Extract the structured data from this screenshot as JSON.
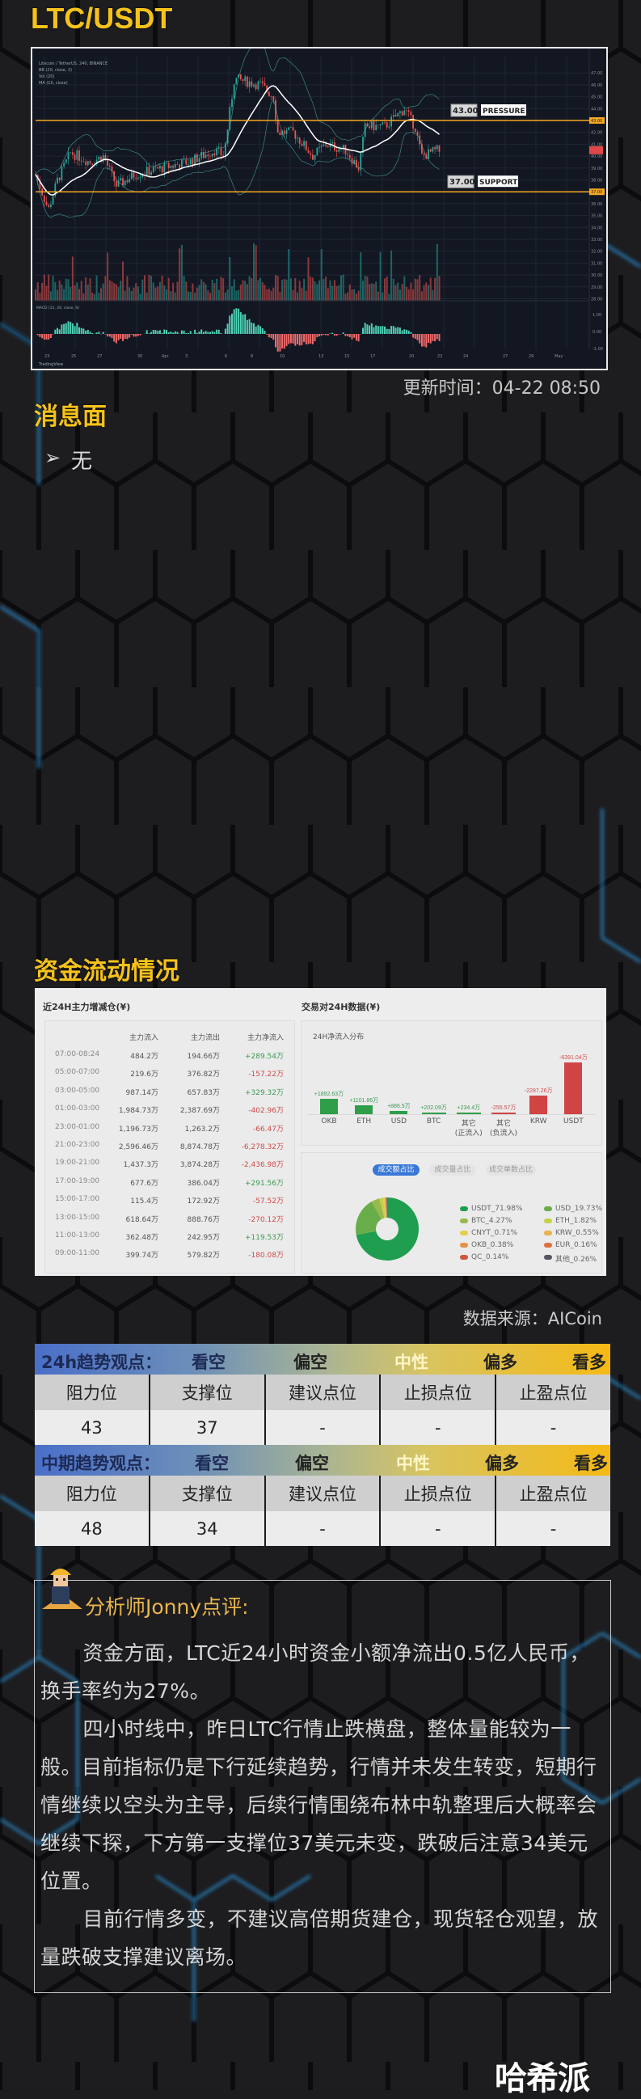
{
  "header": {
    "title": "LTC/USDT"
  },
  "chart_image": {
    "symbol_line": "Litecoin / TetherUS, 240, BINANCE",
    "indicators": [
      "BB (20, close, 2)",
      "Vol (20)",
      "MA (10, close)"
    ],
    "macd_label": "MACD (12, 26, close, 9)",
    "brand": "TradingView",
    "price_ticks": [
      "47.00",
      "46.00",
      "45.00",
      "44.00",
      "43.00",
      "42.00",
      "41.00",
      "40.00",
      "39.00",
      "38.00",
      "37.00",
      "36.00",
      "35.00",
      "34.00",
      "33.00",
      "32.00",
      "31.00",
      "30.00",
      "29.00",
      "28.00"
    ],
    "macd_ticks": [
      "1.00",
      "0.00",
      "-1.00"
    ],
    "date_ticks": [
      "23",
      "25",
      "27",
      "30",
      "Apr",
      "3",
      "6",
      "8",
      "10",
      "13",
      "15",
      "17",
      "20",
      "22",
      "24",
      "27",
      "29",
      "May"
    ],
    "pressure": {
      "value": "43.00",
      "label": "PRESSURE"
    },
    "support": {
      "value": "37.00",
      "label": "SUPPORT"
    },
    "colors": {
      "up": "#26a69a",
      "down": "#ef5350",
      "level": "#f5a623"
    }
  },
  "update_time": "更新时间：04-22 08:50",
  "news": {
    "title": "消息面",
    "items": [
      "无"
    ]
  },
  "flow": {
    "title": "资金流动情况",
    "left": {
      "title": "近24H主力增减仓(¥)",
      "columns": [
        "主力流入",
        "主力流出",
        "主力净流入"
      ],
      "rows": [
        [
          "07:00-08:24",
          "484.2万",
          "194.66万",
          "+289.54万"
        ],
        [
          "05:00-07:00",
          "219.6万",
          "376.82万",
          "-157.22万"
        ],
        [
          "03:00-05:00",
          "987.14万",
          "657.83万",
          "+329.32万"
        ],
        [
          "01:00-03:00",
          "1,984.73万",
          "2,387.69万",
          "-402.96万"
        ],
        [
          "23:00-01:00",
          "1,196.73万",
          "1,263.2万",
          "-66.47万"
        ],
        [
          "21:00-23:00",
          "2,596.46万",
          "8,874.78万",
          "-6,278.32万"
        ],
        [
          "19:00-21:00",
          "1,437.3万",
          "3,874.28万",
          "-2,436.98万"
        ],
        [
          "17:00-19:00",
          "677.6万",
          "386.04万",
          "+291.56万"
        ],
        [
          "15:00-17:00",
          "115.4万",
          "172.92万",
          "-57.52万"
        ],
        [
          "13:00-15:00",
          "618.64万",
          "888.76万",
          "-270.12万"
        ],
        [
          "11:00-13:00",
          "362.48万",
          "242.95万",
          "+119.53万"
        ],
        [
          "09:00-11:00",
          "399.74万",
          "579.82万",
          "-180.08万"
        ]
      ]
    },
    "right": {
      "title": "交易对24H数据(¥)",
      "bar_title": "24H净流入分布",
      "bars": [
        {
          "cat": "OKB",
          "cat2": "",
          "label": "+1892.63万",
          "value": 1892.63
        },
        {
          "cat": "ETH",
          "cat2": "",
          "label": "+1101.86万",
          "value": 1101.86
        },
        {
          "cat": "USD",
          "cat2": "",
          "label": "+886.5万",
          "value": 886.5
        },
        {
          "cat": "BTC",
          "cat2": "",
          "label": "+202.09万",
          "value": 202.09
        },
        {
          "cat": "其它",
          "cat2": "(正流入)",
          "label": "+234.4万",
          "value": 234.4
        },
        {
          "cat": "其它",
          "cat2": "(负流入)",
          "label": "-255.57万",
          "value": -255.57
        },
        {
          "cat": "KRW",
          "cat2": "",
          "label": "-2287.26万",
          "value": -2287.26
        },
        {
          "cat": "USDT",
          "cat2": "",
          "label": "-6391.04万",
          "value": -6391.04
        }
      ],
      "tabs": [
        {
          "label": "成交额占比",
          "active": true
        },
        {
          "label": "成交量占比",
          "active": false
        },
        {
          "label": "成交单数占比",
          "active": false
        }
      ],
      "pie": [
        {
          "name": "USDT_71.98%",
          "value": 71.98,
          "color": "#1f9e4f"
        },
        {
          "name": "USD_19.73%",
          "value": 19.73,
          "color": "#69ad4a"
        },
        {
          "name": "BTC_4.27%",
          "value": 4.27,
          "color": "#98b94c"
        },
        {
          "name": "ETH_1.82%",
          "value": 1.82,
          "color": "#c6d04a"
        },
        {
          "name": "CNYT_0.71%",
          "value": 0.71,
          "color": "#e2d04c"
        },
        {
          "name": "KRW_0.55%",
          "value": 0.55,
          "color": "#e8b24c"
        },
        {
          "name": "OKB_0.38%",
          "value": 0.38,
          "color": "#e0934a"
        },
        {
          "name": "EUR_0.16%",
          "value": 0.16,
          "color": "#e07040"
        },
        {
          "name": "QC_0.14%",
          "value": 0.14,
          "color": "#d0563f"
        },
        {
          "name": "其他_0.26%",
          "value": 0.26,
          "color": "#545566"
        }
      ]
    }
  },
  "source": "数据来源：AICoin",
  "trend_tables": [
    {
      "title": "24h趋势观点：",
      "scale": [
        "看空",
        "偏空",
        "中性",
        "偏多",
        "看多"
      ],
      "columns": [
        "阻力位",
        "支撑位",
        "建议点位",
        "止损点位",
        "止盈点位"
      ],
      "values": [
        "43",
        "37",
        "-",
        "-",
        "-"
      ]
    },
    {
      "title": "中期趋势观点：",
      "scale": [
        "看空",
        "偏空",
        "中性",
        "偏多",
        "看多"
      ],
      "columns": [
        "阻力位",
        "支撑位",
        "建议点位",
        "止损点位",
        "止盈点位"
      ],
      "values": [
        "48",
        "34",
        "-",
        "-",
        "-"
      ]
    }
  ],
  "analyst": {
    "title": "分析师Jonny点评:",
    "paragraphs": [
      "资金方面，LTC近24小时资金小额净流出0.5亿人民币，换手率约为27%。",
      "四小时线中，昨日LTC行情止跌横盘，整体量能较为一般。目前指标仍是下行延续趋势，行情并未发生转变，短期行情继续以空头为主导，后续行情围绕布林中轨整理后大概率会继续下探，下方第一支撑位37美元未变，跌破后注意34美元位置。",
      "目前行情多变，不建议高倍期货建仓，现货轻仓观望，放量跌破支撑建议离场。"
    ]
  },
  "brand": "哈希派"
}
